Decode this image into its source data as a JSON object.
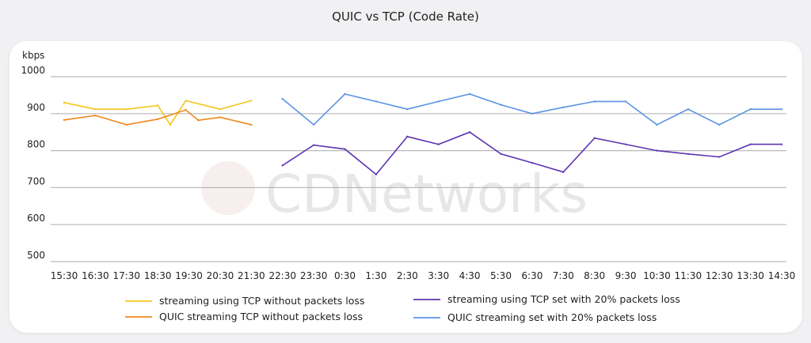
{
  "chart_data": {
    "type": "line",
    "title": "QUIC vs TCP (Code Rate)",
    "ylabel": "kbps",
    "xlabel": "",
    "ylim": [
      500,
      1000
    ],
    "yticks": [
      1000,
      900,
      800,
      700,
      600,
      500
    ],
    "categories": [
      "15:30",
      "16:30",
      "17:30",
      "18:30",
      "19:30",
      "20:30",
      "21:30",
      "22:30",
      "23:30",
      "0:30",
      "1:30",
      "2:30",
      "3:30",
      "4:30",
      "5:30",
      "6:30",
      "7:30",
      "8:30",
      "9:30",
      "10:30",
      "11:30",
      "12:30",
      "13:30",
      "14:30"
    ],
    "series": [
      {
        "name": "streaming using TCP without packets loss",
        "color": "#f5c518",
        "x": [
          0,
          1,
          2,
          3,
          3.4,
          3.9,
          5,
          6
        ],
        "values": [
          930,
          912,
          912,
          922,
          870,
          935,
          912,
          935
        ]
      },
      {
        "name": "QUIC streaming TCP without packets loss",
        "color": "#ee8a1c",
        "x": [
          0,
          1,
          2,
          3,
          3.9,
          4.3,
          5,
          6
        ],
        "values": [
          883,
          895,
          870,
          885,
          910,
          882,
          890,
          870
        ]
      },
      {
        "name": "streaming using TCP set with 20% packets loss",
        "color": "#5e35b1",
        "x": [
          7,
          8,
          9,
          10,
          11,
          12,
          13,
          14,
          15,
          16,
          17,
          18,
          19,
          20,
          21,
          22,
          23
        ],
        "values": [
          760,
          815,
          804,
          736,
          838,
          817,
          850,
          791,
          767,
          742,
          834,
          817,
          800,
          791,
          783,
          817,
          817
        ]
      },
      {
        "name": "QUIC streaming set with 20% packets loss",
        "color": "#5b93e4",
        "x": [
          7,
          8,
          9,
          10,
          11,
          12,
          13,
          14,
          15,
          16,
          17,
          18,
          19,
          20,
          21,
          22,
          23
        ],
        "values": [
          940,
          870,
          953,
          933,
          912,
          933,
          953,
          924,
          900,
          917,
          933,
          933,
          870,
          912,
          870,
          912,
          912
        ]
      }
    ],
    "legend_position": "bottom",
    "grid": true
  },
  "watermark": "CDNetworks"
}
